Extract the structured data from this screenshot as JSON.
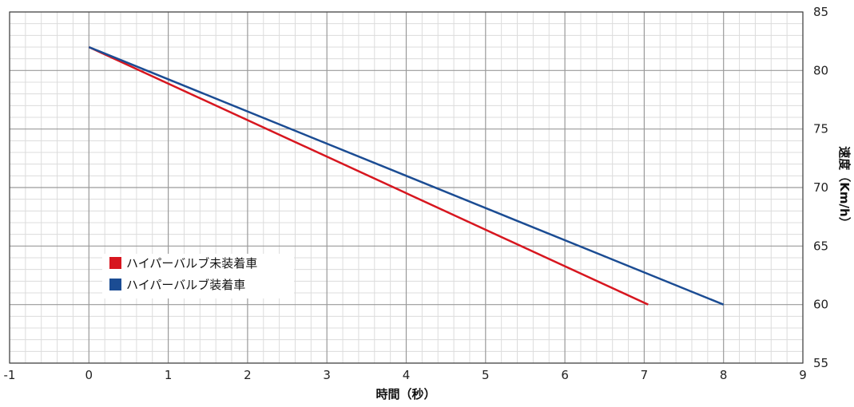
{
  "chart_data": {
    "type": "line",
    "title": "",
    "xlabel": "時間（秒）",
    "ylabel": "速度（Km/h）",
    "xlim": [
      -1,
      9
    ],
    "ylim": [
      55,
      85
    ],
    "x_ticks": [
      -1,
      0,
      1,
      2,
      3,
      4,
      5,
      6,
      7,
      8,
      9
    ],
    "y_ticks": [
      55,
      60,
      65,
      70,
      75,
      80,
      85
    ],
    "y_axis_side": "right",
    "grid": true,
    "legend_position": "left",
    "series": [
      {
        "name": "ハイパーバルブ未装着車",
        "color": "#d7161f",
        "x": [
          0,
          7.05
        ],
        "y": [
          82,
          60
        ]
      },
      {
        "name": "ハイパーバルブ装着車",
        "color": "#1b4c93",
        "x": [
          0,
          8
        ],
        "y": [
          82,
          60
        ]
      }
    ]
  }
}
